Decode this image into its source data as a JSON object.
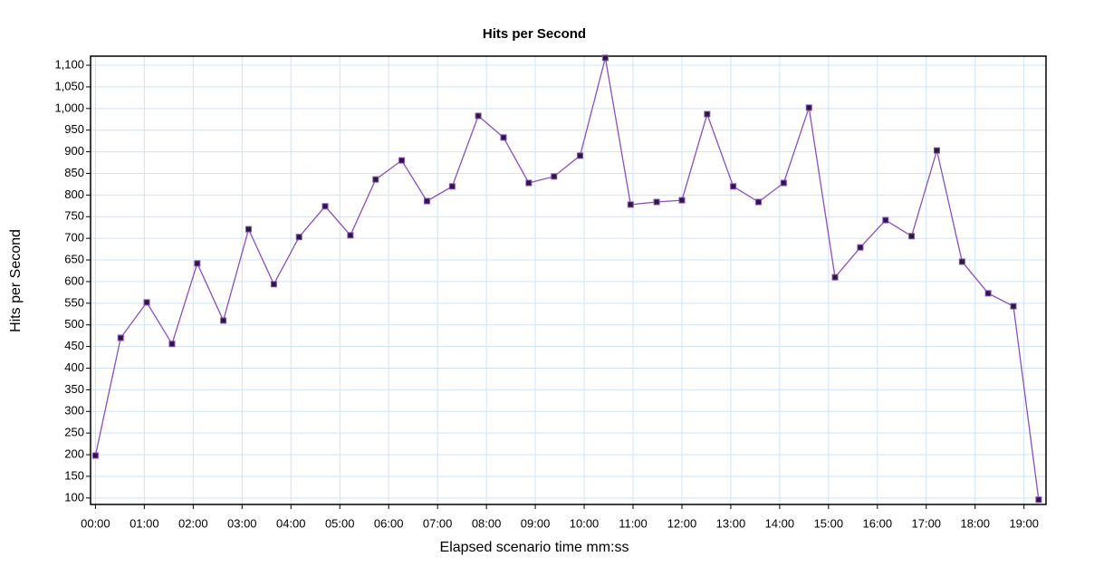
{
  "chart_data": {
    "type": "line",
    "title": "Hits per Second",
    "x_label": "Elapsed scenario time mm:ss",
    "y_label": "Hits per Second",
    "x": [
      0,
      31,
      63,
      94,
      125,
      157,
      188,
      219,
      250,
      282,
      313,
      344,
      376,
      407,
      438,
      470,
      501,
      532,
      563,
      595,
      626,
      657,
      689,
      720,
      751,
      783,
      814,
      845,
      876,
      908,
      939,
      970,
      1002,
      1033,
      1064,
      1096,
      1127,
      1158
    ],
    "series": [
      {
        "name": "Hits per Second",
        "color": "#8a4fc0",
        "marker_color": "#2a1a40",
        "values": [
          198,
          470,
          552,
          456,
          642,
          510,
          721,
          594,
          703,
          774,
          707,
          836,
          880,
          786,
          820,
          983,
          933,
          828,
          843,
          891,
          1117,
          778,
          784,
          788,
          987,
          820,
          784,
          828,
          1002,
          610,
          679,
          742,
          705,
          903,
          646,
          573,
          543,
          96
        ]
      }
    ],
    "xlim": [
      -6,
      1167
    ],
    "ylim": [
      85,
      1121
    ],
    "xticks": [
      {
        "value": 0,
        "label": "00:00"
      },
      {
        "value": 60,
        "label": "01:00"
      },
      {
        "value": 120,
        "label": "02:00"
      },
      {
        "value": 180,
        "label": "03:00"
      },
      {
        "value": 240,
        "label": "04:00"
      },
      {
        "value": 300,
        "label": "05:00"
      },
      {
        "value": 360,
        "label": "06:00"
      },
      {
        "value": 420,
        "label": "07:00"
      },
      {
        "value": 480,
        "label": "08:00"
      },
      {
        "value": 540,
        "label": "09:00"
      },
      {
        "value": 600,
        "label": "10:00"
      },
      {
        "value": 660,
        "label": "11:00"
      },
      {
        "value": 720,
        "label": "12:00"
      },
      {
        "value": 780,
        "label": "13:00"
      },
      {
        "value": 840,
        "label": "14:00"
      },
      {
        "value": 900,
        "label": "15:00"
      },
      {
        "value": 960,
        "label": "16:00"
      },
      {
        "value": 1020,
        "label": "17:00"
      },
      {
        "value": 1080,
        "label": "18:00"
      },
      {
        "value": 1140,
        "label": "19:00"
      }
    ],
    "yticks": [
      100,
      150,
      200,
      250,
      300,
      350,
      400,
      450,
      500,
      550,
      600,
      650,
      700,
      750,
      800,
      850,
      900,
      950,
      {
        "value": 1000,
        "label": "1,000"
      },
      {
        "value": 1050,
        "label": "1,050"
      },
      {
        "value": 1100,
        "label": "1,100"
      }
    ],
    "grid": true
  }
}
